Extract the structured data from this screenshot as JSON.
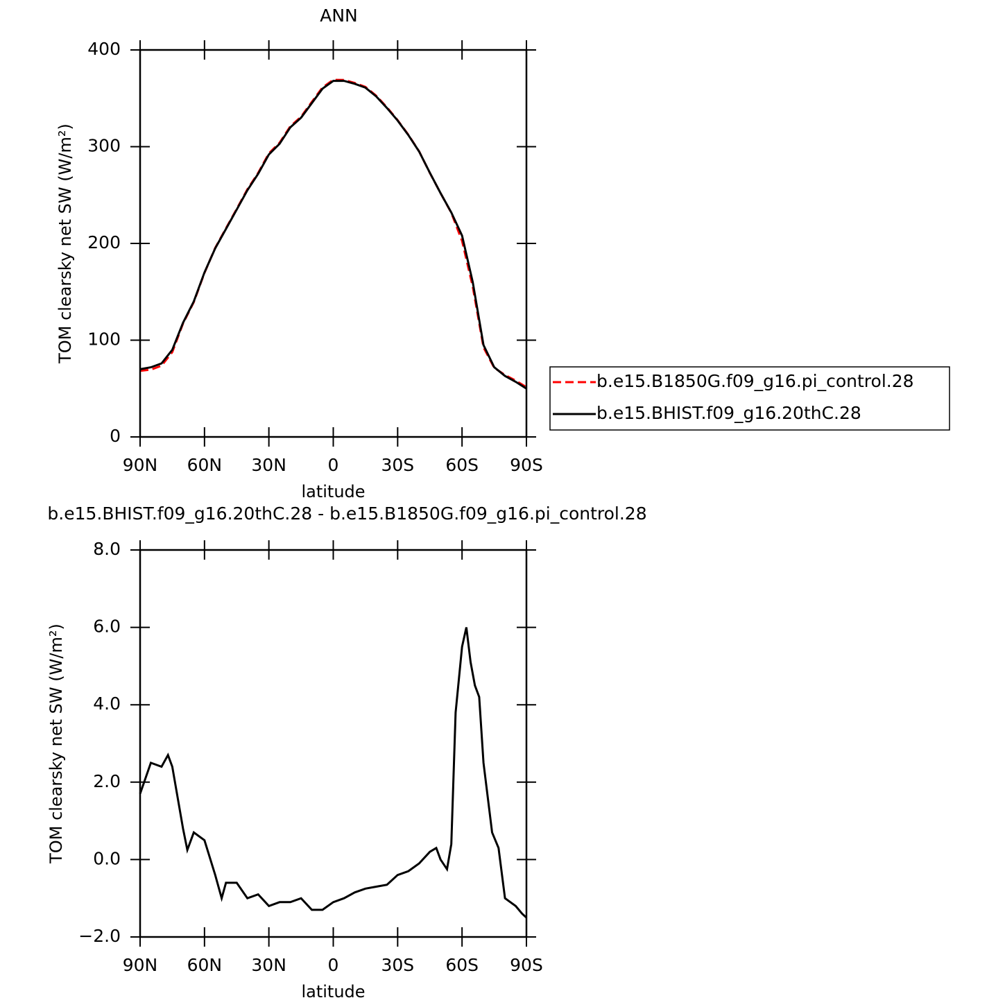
{
  "chart_data": [
    {
      "type": "line",
      "title": "ANN",
      "xlabel": "latitude",
      "ylabel": "TOM clearsky net SW (W/m²)",
      "xlim": [
        90,
        -90
      ],
      "ylim": [
        0,
        400
      ],
      "xticks": [
        {
          "value": 90,
          "label": "90N"
        },
        {
          "value": 60,
          "label": "60N"
        },
        {
          "value": 30,
          "label": "30N"
        },
        0,
        {
          "value": -30,
          "label": "30S"
        },
        {
          "value": -60,
          "label": "60S"
        },
        {
          "value": -90,
          "label": "90S"
        }
      ],
      "yticks": [
        0,
        100,
        200,
        300,
        400
      ],
      "legend": "outside-right",
      "x": [
        90,
        85,
        80,
        75,
        70,
        65,
        60,
        55,
        50,
        45,
        40,
        35,
        30,
        25,
        20,
        15,
        10,
        5,
        0,
        -5,
        -10,
        -15,
        -20,
        -25,
        -30,
        -35,
        -40,
        -45,
        -50,
        -55,
        -60,
        -65,
        -70,
        -75,
        -80,
        -85,
        -90
      ],
      "series": [
        {
          "name": "b.e15.B1850G.f09_g16.pi_control.28",
          "color": "#ff0000",
          "dash": "dashed",
          "values": [
            68.3,
            69.5,
            73.6,
            87.6,
            117.2,
            139.3,
            169.5,
            195.4,
            215.6,
            235.6,
            256,
            272.9,
            293.2,
            304.1,
            321.1,
            331,
            346.3,
            361.3,
            369.1,
            369,
            365.9,
            361.8,
            352.7,
            340.7,
            327.4,
            312.3,
            295.1,
            272.8,
            252,
            231.6,
            202.5,
            155.2,
            92.5,
            71.4,
            64,
            58.2,
            51.5
          ]
        },
        {
          "name": "b.e15.BHIST.f09_g16.20thC.28",
          "color": "#000000",
          "dash": "solid",
          "values": [
            70,
            72,
            76,
            90,
            118,
            140,
            170,
            195,
            215,
            235,
            255,
            272,
            292,
            303,
            320,
            330,
            345,
            360,
            368,
            368,
            365,
            361,
            352,
            340,
            327,
            312,
            295,
            273,
            252,
            232,
            208,
            160,
            95,
            72,
            63,
            57,
            50
          ]
        }
      ]
    },
    {
      "type": "line",
      "title": "b.e15.BHIST.f09_g16.20thC.28 - b.e15.B1850G.f09_g16.pi_control.28",
      "xlabel": "latitude",
      "ylabel": "TOM clearsky net SW (W/m²)",
      "xlim": [
        90,
        -90
      ],
      "ylim": [
        -2,
        8
      ],
      "xticks": [
        {
          "value": 90,
          "label": "90N"
        },
        {
          "value": 60,
          "label": "60N"
        },
        {
          "value": 30,
          "label": "30N"
        },
        0,
        {
          "value": -30,
          "label": "30S"
        },
        {
          "value": -60,
          "label": "60S"
        },
        {
          "value": -90,
          "label": "90S"
        }
      ],
      "yticks": [
        {
          "value": -2,
          "label": "−2.0"
        },
        {
          "value": 0,
          "label": "0.0"
        },
        {
          "value": 2,
          "label": "2.0"
        },
        {
          "value": 4,
          "label": "4.0"
        },
        {
          "value": 6,
          "label": "6.0"
        },
        {
          "value": 8,
          "label": "8.0"
        }
      ],
      "color": "#000000",
      "x": [
        90,
        85,
        80,
        77,
        75,
        70,
        68,
        65,
        60,
        55,
        52,
        50,
        45,
        40,
        35,
        30,
        25,
        20,
        15,
        10,
        5,
        0,
        -5,
        -10,
        -15,
        -20,
        -25,
        -30,
        -35,
        -40,
        -45,
        -48,
        -50,
        -53,
        -55,
        -57,
        -60,
        -62,
        -64,
        -66,
        -68,
        -70,
        -74,
        -77,
        -80,
        -85,
        -88,
        -90
      ],
      "values": [
        1.7,
        2.5,
        2.4,
        2.7,
        2.4,
        0.8,
        0.25,
        0.7,
        0.5,
        -0.4,
        -1.0,
        -0.6,
        -0.6,
        -1.0,
        -0.9,
        -1.2,
        -1.1,
        -1.1,
        -1.0,
        -1.3,
        -1.3,
        -1.1,
        -1.0,
        -0.85,
        -0.75,
        -0.7,
        -0.65,
        -0.4,
        -0.3,
        -0.1,
        0.2,
        0.3,
        0.0,
        -0.25,
        0.4,
        3.8,
        5.5,
        6.0,
        5.1,
        4.5,
        4.2,
        2.5,
        0.7,
        0.3,
        -1.0,
        -1.2,
        -1.4,
        -1.5
      ]
    }
  ]
}
